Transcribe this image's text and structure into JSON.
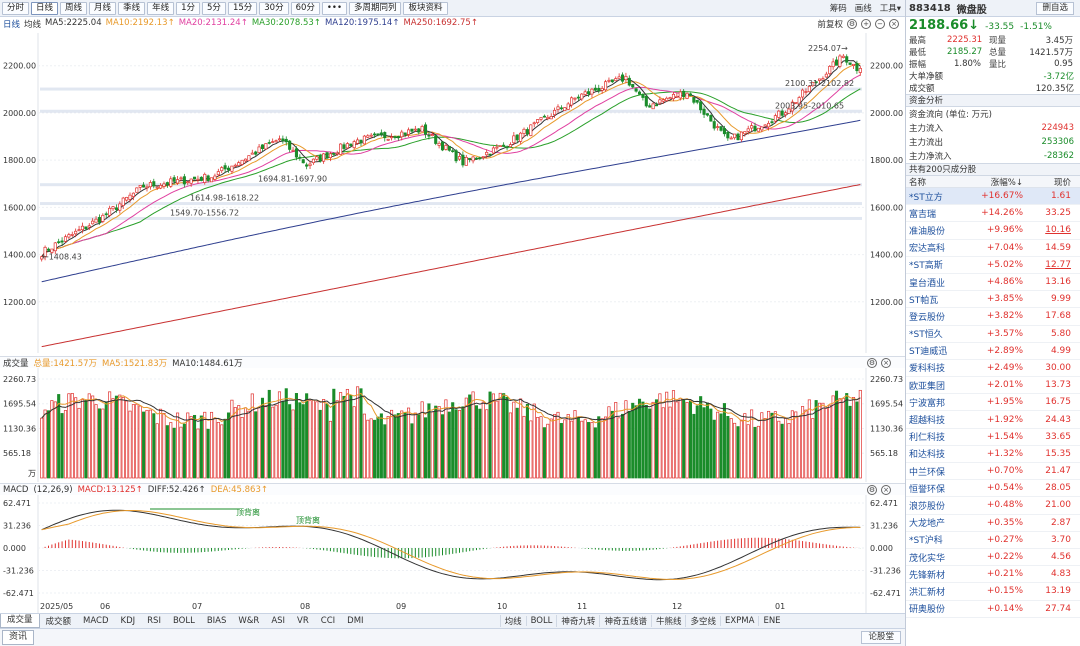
{
  "toolbar": {
    "buttons": [
      "分时",
      "日线",
      "周线",
      "月线",
      "季线",
      "年线",
      "1分",
      "5分",
      "15分",
      "30分",
      "60分",
      "•••",
      "多周期同列",
      "板块资料"
    ],
    "active_index": 1,
    "right_items": [
      "筹码",
      "画线",
      "工具▾"
    ]
  },
  "ma_line": {
    "period": "日线",
    "items": [
      {
        "text": "均线",
        "color": "#333333"
      },
      {
        "text": "MA5:2225.04",
        "color": "#333333"
      },
      {
        "text": "MA10:2192.13↑",
        "color": "#e89a2c"
      },
      {
        "text": "MA20:2131.24↑",
        "color": "#e040a0"
      },
      {
        "text": "MA30:2078.53↑",
        "color": "#2aa02a"
      },
      {
        "text": "MA120:1975.14↑",
        "color": "#2f3f8f"
      },
      {
        "text": "MA250:1692.75↑",
        "color": "#c83232"
      }
    ],
    "restore": "前复权"
  },
  "colors": {
    "up": "#e0312e",
    "down": "#1a8c2a",
    "ma5": "#333333",
    "ma10": "#e89a2c",
    "ma20": "#e040a0",
    "ma30": "#2aa02a",
    "ma120": "#2f3f8f",
    "ma250": "#c83232"
  },
  "price_axis": {
    "ticks": [
      "2200.00",
      "2000.00",
      "1800.00",
      "1600.00",
      "1400.00",
      "1200.00"
    ],
    "values": [
      2200,
      2000,
      1800,
      1600,
      1400,
      1200
    ],
    "range": [
      1000,
      2330
    ]
  },
  "annotations": {
    "high": "2254.07→",
    "low": "←1408.43",
    "levels": [
      {
        "text": "2100.31-2102.82",
        "value": 2101
      },
      {
        "text": "2003.95-2010.65",
        "value": 2007
      },
      {
        "text": "1694.81-1697.90",
        "value": 1696
      },
      {
        "text": "1614.98-1618.22",
        "value": 1616
      },
      {
        "text": "1549.70-1556.72",
        "value": 1553
      }
    ]
  },
  "chart_data": [
    {
      "type": "candlestick",
      "title": "",
      "x_labels": [
        "2025/05",
        "06",
        "07",
        "08",
        "09",
        "10",
        "11",
        "12",
        "01"
      ],
      "key_points": [
        [
          0,
          1408
        ],
        [
          18,
          1560
        ],
        [
          30,
          1690
        ],
        [
          50,
          1730
        ],
        [
          70,
          1890
        ],
        [
          78,
          1780
        ],
        [
          92,
          1880
        ],
        [
          112,
          1930
        ],
        [
          124,
          1790
        ],
        [
          136,
          1860
        ],
        [
          158,
          2070
        ],
        [
          172,
          2150
        ],
        [
          178,
          2030
        ],
        [
          190,
          2090
        ],
        [
          202,
          1880
        ],
        [
          218,
          2000
        ],
        [
          236,
          2240
        ],
        [
          240,
          2190
        ]
      ],
      "high": 2254.07,
      "low": 1408.43,
      "last_close": 2188.66
    },
    {
      "type": "bar",
      "title": "成交量",
      "series": [
        {
          "name": "总量",
          "value": "1421.57万"
        },
        {
          "name": "MA5",
          "value": "1521.83万"
        },
        {
          "name": "MA10",
          "value": "1484.61万"
        }
      ],
      "y_ticks": [
        "2260.73",
        "1695.54",
        "1130.36",
        "565.18"
      ],
      "unit": "万",
      "ylim": [
        0,
        2420
      ]
    },
    {
      "type": "bar",
      "title": "MACD",
      "params": "(12,26,9)",
      "series": [
        {
          "name": "MACD",
          "value": "13.125"
        },
        {
          "name": "DIFF",
          "value": "52.426"
        },
        {
          "name": "DEA",
          "value": "45.863"
        }
      ],
      "y_ticks": [
        "62.471",
        "31.236",
        "0.000",
        "-31.236",
        "-62.471"
      ],
      "ylim": [
        -62.471,
        62.471
      ],
      "annotations": [
        "顶背离",
        "顶背离"
      ]
    }
  ],
  "volume": {
    "label": "成交量",
    "items": [
      {
        "text": "总量:1421.57万",
        "color": "#e89a2c"
      },
      {
        "text": "MA5:1521.83万",
        "color": "#e89a2c"
      },
      {
        "text": "MA10:1484.61万",
        "color": "#333333"
      }
    ],
    "ticks": [
      "2260.73",
      "1695.54",
      "1130.36",
      "565.18"
    ],
    "unit": "万"
  },
  "macd": {
    "label": "MACD",
    "items": [
      {
        "text": "(12,26,9)",
        "color": "#333333"
      },
      {
        "text": "MACD:13.125↑",
        "color": "#e0312e"
      },
      {
        "text": "DIFF:52.426↑",
        "color": "#333333"
      },
      {
        "text": "DEA:45.863↑",
        "color": "#e89a2c"
      }
    ],
    "ticks": [
      "62.471",
      "31.236",
      "0.000",
      "-31.236",
      "-62.471"
    ],
    "divergence": "顶背离"
  },
  "tabs_bottom": {
    "left": [
      "成交量",
      "成交额",
      "MACD",
      "KDJ",
      "RSI",
      "BOLL",
      "BIAS",
      "W&R",
      "ASI",
      "VR",
      "CCI",
      "DMI"
    ],
    "right": [
      "均线",
      "BOLL",
      "神奇九转",
      "神奇五线谱",
      "牛熊线",
      "多空线",
      "EXPMA",
      "ENE"
    ]
  },
  "news": {
    "tab": "资讯",
    "lists_button": "论股堂"
  },
  "panel": {
    "code": "883418",
    "name": "微盘股",
    "delete_label": "删自选",
    "price": "2188.66",
    "arrow": "↓",
    "change": "-33.55",
    "pct": "-1.51%",
    "quote": [
      {
        "l": "最高",
        "v": "2225.31",
        "vc": "red",
        "l2": "现量",
        "v2": "3.45万",
        "v2c": ""
      },
      {
        "l": "最低",
        "v": "2185.27",
        "vc": "green",
        "l2": "总量",
        "v2": "1421.57万",
        "v2c": ""
      },
      {
        "l": "振幅",
        "v": "1.80%",
        "vc": "",
        "l2": "量比",
        "v2": "0.95",
        "v2c": ""
      }
    ],
    "quote2": [
      {
        "l": "大单净额",
        "v": "-3.72亿",
        "vc": "green"
      },
      {
        "l": "成交额",
        "v": "120.35亿",
        "vc": ""
      }
    ],
    "fund_title": "资金分析",
    "fund_unit": "资金流向 (单位: 万元)",
    "funds": [
      {
        "l": "主力流入",
        "v": "224943",
        "vc": "red"
      },
      {
        "l": "主力流出",
        "v": "253306",
        "vc": "green"
      },
      {
        "l": "主力净流入",
        "v": "-28362",
        "vc": "green"
      }
    ],
    "const_title": "共有200只成分股",
    "const_head": [
      "名称",
      "涨幅%↓",
      "现价"
    ],
    "constituents": [
      {
        "n": "*ST立方",
        "p": "+16.67%",
        "v": "1.61",
        "u": false
      },
      {
        "n": "富吉瑞",
        "p": "+14.26%",
        "v": "33.25",
        "u": false
      },
      {
        "n": "准油股份",
        "p": "+9.96%",
        "v": "10.16",
        "u": true
      },
      {
        "n": "宏达高科",
        "p": "+7.04%",
        "v": "14.59",
        "u": false
      },
      {
        "n": "*ST高斯",
        "p": "+5.02%",
        "v": "12.77",
        "u": true
      },
      {
        "n": "皇台酒业",
        "p": "+4.86%",
        "v": "13.16",
        "u": false
      },
      {
        "n": "ST帕瓦",
        "p": "+3.85%",
        "v": "9.99",
        "u": false
      },
      {
        "n": "登云股份",
        "p": "+3.82%",
        "v": "17.68",
        "u": false
      },
      {
        "n": "*ST恒久",
        "p": "+3.57%",
        "v": "5.80",
        "u": false
      },
      {
        "n": "ST迪威迅",
        "p": "+2.89%",
        "v": "4.99",
        "u": false
      },
      {
        "n": "爱科科技",
        "p": "+2.49%",
        "v": "30.00",
        "u": false
      },
      {
        "n": "欧亚集团",
        "p": "+2.01%",
        "v": "13.73",
        "u": false
      },
      {
        "n": "宁波富邦",
        "p": "+1.95%",
        "v": "16.75",
        "u": false
      },
      {
        "n": "超越科技",
        "p": "+1.92%",
        "v": "24.43",
        "u": false
      },
      {
        "n": "利仁科技",
        "p": "+1.54%",
        "v": "33.65",
        "u": false
      },
      {
        "n": "和达科技",
        "p": "+1.32%",
        "v": "15.35",
        "u": false
      },
      {
        "n": "中兰环保",
        "p": "+0.70%",
        "v": "21.47",
        "u": false
      },
      {
        "n": "恒誉环保",
        "p": "+0.54%",
        "v": "28.05",
        "u": false
      },
      {
        "n": "浪莎股份",
        "p": "+0.48%",
        "v": "21.00",
        "u": false
      },
      {
        "n": "大龙地产",
        "p": "+0.35%",
        "v": "2.87",
        "u": false
      },
      {
        "n": "*ST沪科",
        "p": "+0.27%",
        "v": "3.70",
        "u": false
      },
      {
        "n": "茂化实华",
        "p": "+0.22%",
        "v": "4.56",
        "u": false
      },
      {
        "n": "先锋新材",
        "p": "+0.21%",
        "v": "4.83",
        "u": false
      },
      {
        "n": "洪汇新材",
        "p": "+0.15%",
        "v": "13.19",
        "u": false
      },
      {
        "n": "研奥股份",
        "p": "+0.14%",
        "v": "27.74",
        "u": false
      }
    ]
  }
}
